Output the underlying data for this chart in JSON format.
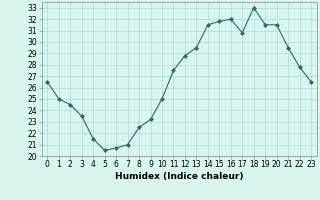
{
  "x": [
    0,
    1,
    2,
    3,
    4,
    5,
    6,
    7,
    8,
    9,
    10,
    11,
    12,
    13,
    14,
    15,
    16,
    17,
    18,
    19,
    20,
    21,
    22,
    23
  ],
  "y": [
    26.5,
    25.0,
    24.5,
    23.5,
    21.5,
    20.5,
    20.7,
    21.0,
    22.5,
    23.2,
    25.0,
    27.5,
    28.8,
    29.5,
    31.5,
    31.8,
    32.0,
    30.8,
    33.0,
    31.5,
    31.5,
    29.5,
    27.8,
    26.5
  ],
  "line_color": "#2e6b5e",
  "marker": "D",
  "marker_size": 2,
  "bg_color": "#d8f5f0",
  "grid_color": "#b0d8d2",
  "xlabel": "Humidex (Indice chaleur)",
  "ylabel": "",
  "title": "",
  "xlim": [
    -0.5,
    23.5
  ],
  "ylim": [
    20,
    33.5
  ],
  "yticks": [
    20,
    21,
    22,
    23,
    24,
    25,
    26,
    27,
    28,
    29,
    30,
    31,
    32,
    33
  ],
  "xticks": [
    0,
    1,
    2,
    3,
    4,
    5,
    6,
    7,
    8,
    9,
    10,
    11,
    12,
    13,
    14,
    15,
    16,
    17,
    18,
    19,
    20,
    21,
    22,
    23
  ],
  "tick_fontsize": 5.5,
  "xlabel_fontsize": 6.5
}
